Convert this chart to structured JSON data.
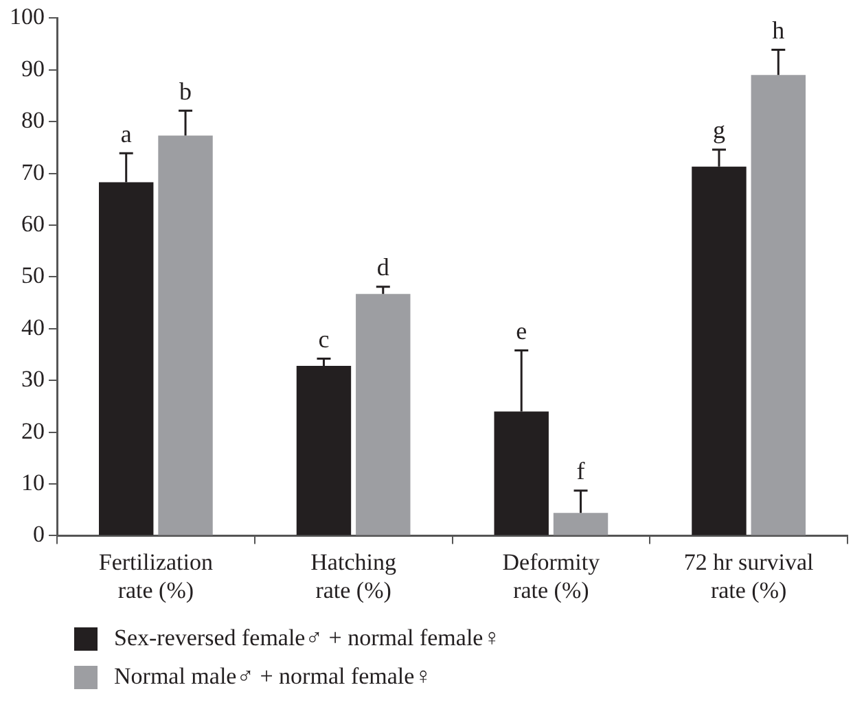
{
  "chart_data": {
    "type": "bar",
    "categories": [
      "Fertilization rate (%)",
      "Hatching rate (%)",
      "Deformity rate (%)",
      "72 hr survival rate (%)"
    ],
    "series": [
      {
        "name": "Sex-reversed female♂ + normal female♀",
        "color": "#231f20",
        "values": [
          68.3,
          32.8,
          24.0,
          71.3
        ],
        "errors": [
          [
            68.3,
            73.9
          ],
          [
            32.8,
            34.2
          ],
          [
            24.0,
            35.8
          ],
          [
            71.3,
            74.6
          ]
        ]
      },
      {
        "name": "Normal male♂ + normal female♀",
        "color": "#9d9ea2",
        "values": [
          77.3,
          46.7,
          4.4,
          89.0
        ],
        "errors": [
          [
            77.3,
            82.1
          ],
          [
            46.7,
            48.1
          ],
          [
            4.4,
            8.7
          ],
          [
            89.0,
            93.9
          ]
        ]
      }
    ],
    "ylim": [
      0,
      100
    ],
    "yticks": [
      0,
      10,
      20,
      30,
      40,
      50,
      60,
      70,
      80,
      90,
      100
    ],
    "grid": false,
    "legend": "bottom left",
    "annotations": [
      "a",
      "b",
      "c",
      "d",
      "e",
      "f",
      "g",
      "h"
    ]
  }
}
